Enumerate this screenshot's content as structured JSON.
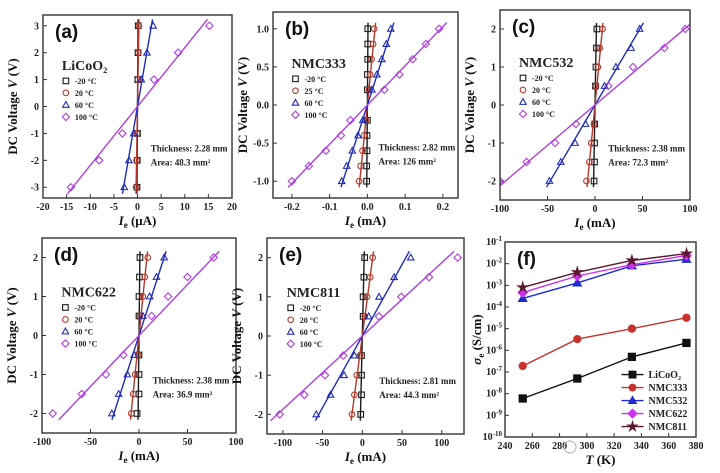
{
  "chart_data": [
    {
      "type": "scatter",
      "label": "(a)",
      "legend_title": "LiCoO₂",
      "thickness": "Thickness: 2.28 mm",
      "area": "Area: 48.3 mm²",
      "xlabel": {
        "var": "I",
        "sub": "e",
        "unit": " (μA)"
      },
      "ylabel": {
        "pre": "DC Voltage ",
        "var": "V",
        "unit": " (V)"
      },
      "xlim": [
        -20,
        20
      ],
      "ylim": [
        -3.4,
        3.4
      ],
      "xticks": [
        "-20",
        "-15",
        "-10",
        "-5",
        "0",
        "5",
        "10",
        "15",
        "20"
      ],
      "yticks": [
        "-3",
        "-2",
        "-1",
        "0",
        "1",
        "2",
        "3"
      ],
      "fit_lines": true,
      "series": [
        {
          "name": "-20 °C",
          "marker": "square",
          "color": "#1a1a1a",
          "points": [
            [
              -0.1,
              -3
            ],
            [
              -0.05,
              -2
            ],
            [
              0,
              -1
            ],
            [
              0.05,
              1
            ],
            [
              0.1,
              2
            ],
            [
              0.15,
              3
            ]
          ]
        },
        {
          "name": "20 °C",
          "marker": "circle",
          "color": "#b5382a",
          "points": [
            [
              -0.3,
              -3
            ],
            [
              -0.2,
              -2
            ],
            [
              -0.1,
              -1
            ],
            [
              0.1,
              1
            ],
            [
              0.2,
              2
            ],
            [
              0.3,
              3
            ]
          ]
        },
        {
          "name": "60 °C",
          "marker": "triangle",
          "color": "#1f2bb8",
          "points": [
            [
              -2.8,
              -3
            ],
            [
              -1.8,
              -2
            ],
            [
              -0.8,
              -1
            ],
            [
              0.8,
              1
            ],
            [
              2,
              2
            ],
            [
              3.3,
              3
            ]
          ]
        },
        {
          "name": "100 °C",
          "marker": "diamond",
          "color": "#b03ee0",
          "points": [
            [
              -14.1,
              -3
            ],
            [
              -8.1,
              -2
            ],
            [
              -3.2,
              -1
            ],
            [
              3.5,
              1
            ],
            [
              8.6,
              2
            ],
            [
              15.2,
              3
            ]
          ]
        }
      ]
    },
    {
      "type": "scatter",
      "label": "(b)",
      "legend_title": "NMC333",
      "thickness": "Thickness: 2.82 mm",
      "area": "Area: 126 mm²",
      "xlabel": {
        "var": "I",
        "sub": "e",
        "unit": " (mA)"
      },
      "ylabel": {
        "pre": "DC Voltage ",
        "var": "V",
        "unit": " (V)"
      },
      "xlim": [
        -0.25,
        0.24
      ],
      "ylim": [
        -1.22,
        1.22
      ],
      "xticks": [
        "-0.2",
        "-0.1",
        "0.0",
        "0.1",
        "0.2"
      ],
      "yticks": [
        "-1.0",
        "-0.5",
        "0.0",
        "0.5",
        "1.0"
      ],
      "fit_lines": true,
      "series": [
        {
          "name": "-20 °C",
          "marker": "square",
          "color": "#1a1a1a",
          "points": [
            [
              -0.002,
              -1
            ],
            [
              -0.002,
              -0.8
            ],
            [
              -0.001,
              -0.6
            ],
            [
              -0.001,
              -0.4
            ],
            [
              0,
              -0.2
            ],
            [
              0,
              0.2
            ],
            [
              0,
              0.4
            ],
            [
              0.001,
              0.6
            ],
            [
              0.001,
              0.8
            ],
            [
              0.001,
              1
            ]
          ]
        },
        {
          "name": "25 °C",
          "marker": "circle",
          "color": "#b5382a",
          "points": [
            [
              -0.022,
              -1
            ],
            [
              -0.018,
              -0.8
            ],
            [
              -0.013,
              -0.6
            ],
            [
              -0.009,
              -0.4
            ],
            [
              -0.004,
              -0.2
            ],
            [
              0.004,
              0.2
            ],
            [
              0.007,
              0.4
            ],
            [
              0.011,
              0.6
            ],
            [
              0.015,
              0.8
            ],
            [
              0.018,
              1
            ]
          ]
        },
        {
          "name": "60 °C",
          "marker": "triangle",
          "color": "#1f2bb8",
          "points": [
            [
              -0.068,
              -1
            ],
            [
              -0.055,
              -0.8
            ],
            [
              -0.04,
              -0.6
            ],
            [
              -0.025,
              -0.4
            ],
            [
              -0.012,
              -0.2
            ],
            [
              0.012,
              0.2
            ],
            [
              0.025,
              0.4
            ],
            [
              0.038,
              0.6
            ],
            [
              0.05,
              0.8
            ],
            [
              0.062,
              1
            ]
          ]
        },
        {
          "name": "100 °C",
          "marker": "diamond",
          "color": "#b03ee0",
          "points": [
            [
              -0.2,
              -1
            ],
            [
              -0.155,
              -0.8
            ],
            [
              -0.11,
              -0.6
            ],
            [
              -0.07,
              -0.4
            ],
            [
              -0.045,
              -0.2
            ],
            [
              0.045,
              0.2
            ],
            [
              0.085,
              0.4
            ],
            [
              0.12,
              0.6
            ],
            [
              0.155,
              0.8
            ],
            [
              0.19,
              1
            ]
          ]
        }
      ]
    },
    {
      "type": "scatter",
      "label": "(c)",
      "legend_title": "NMC532",
      "thickness": "Thickness: 2.38 mm",
      "area": "Area: 72.3 mm²",
      "xlabel": {
        "var": "I",
        "sub": "e",
        "unit": " (mA)"
      },
      "ylabel": {
        "pre": "DC Voltage ",
        "var": "V",
        "unit": " (V)"
      },
      "xlim": [
        -100,
        100
      ],
      "ylim": [
        -2.5,
        2.5
      ],
      "xticks": [
        "-100",
        "-50",
        "0",
        "50",
        "100"
      ],
      "yticks": [
        "-2",
        "-1",
        "0",
        "1",
        "2"
      ],
      "fit_lines": true,
      "series": [
        {
          "name": "-20 °C",
          "marker": "square",
          "color": "#1a1a1a",
          "points": [
            [
              -1,
              -2
            ],
            [
              -0.5,
              -1.5
            ],
            [
              -0.5,
              -1
            ],
            [
              -0.3,
              -0.5
            ],
            [
              0.5,
              0.5
            ],
            [
              1,
              1
            ],
            [
              1.5,
              1.5
            ],
            [
              2,
              2
            ]
          ]
        },
        {
          "name": "20 °C",
          "marker": "circle",
          "color": "#b5382a",
          "points": [
            [
              -9,
              -2
            ],
            [
              -6,
              -1.5
            ],
            [
              -4,
              -1
            ],
            [
              -1,
              -0.5
            ],
            [
              1,
              0.5
            ],
            [
              3,
              1
            ],
            [
              5,
              1.5
            ],
            [
              8,
              2
            ]
          ]
        },
        {
          "name": "60 °C",
          "marker": "triangle",
          "color": "#1f2bb8",
          "points": [
            [
              -48,
              -2
            ],
            [
              -36,
              -1.5
            ],
            [
              -21,
              -1
            ],
            [
              -10,
              -0.5
            ],
            [
              10,
              0.5
            ],
            [
              22,
              1
            ],
            [
              38,
              1.5
            ],
            [
              47,
              2
            ]
          ]
        },
        {
          "name": "100 °C",
          "marker": "diamond",
          "color": "#b03ee0",
          "points": [
            [
              -100,
              -2
            ],
            [
              -72,
              -1.5
            ],
            [
              -42,
              -1
            ],
            [
              -20,
              -0.5
            ],
            [
              14,
              0.5
            ],
            [
              40,
              1
            ],
            [
              73,
              1.5
            ],
            [
              95,
              2
            ]
          ]
        }
      ]
    },
    {
      "type": "scatter",
      "label": "(d)",
      "legend_title": "NMC622",
      "thickness": "Thickness: 2.38 mm",
      "area": "Area: 36.9 mm²",
      "xlabel": {
        "var": "I",
        "sub": "e",
        "unit": " (mA)"
      },
      "ylabel": {
        "pre": "DC Voltage ",
        "var": "V",
        "unit": " (V)"
      },
      "xlim": [
        -100,
        100
      ],
      "ylim": [
        -2.5,
        2.5
      ],
      "xticks": [
        "-100",
        "-50",
        "0",
        "50",
        "100"
      ],
      "yticks": [
        "-2",
        "-1",
        "0",
        "1",
        "2"
      ],
      "fit_lines": true,
      "series": [
        {
          "name": "-20 °C",
          "marker": "square",
          "color": "#1a1a1a",
          "points": [
            [
              -2,
              -2
            ],
            [
              0,
              -1.5
            ],
            [
              0,
              -1
            ],
            [
              0,
              -0.5
            ],
            [
              0,
              0.5
            ],
            [
              0,
              1
            ],
            [
              0.5,
              1.5
            ],
            [
              1,
              2
            ]
          ]
        },
        {
          "name": "20 °C",
          "marker": "circle",
          "color": "#b5382a",
          "points": [
            [
              -8,
              -2
            ],
            [
              -6,
              -1.5
            ],
            [
              -4,
              -1
            ],
            [
              -1,
              -0.5
            ],
            [
              1,
              0.5
            ],
            [
              4,
              1
            ],
            [
              6,
              1.5
            ],
            [
              9,
              2
            ]
          ]
        },
        {
          "name": "60 °C",
          "marker": "triangle",
          "color": "#1f2bb8",
          "points": [
            [
              -28,
              -2
            ],
            [
              -21,
              -1.5
            ],
            [
              -12,
              -1
            ],
            [
              -5,
              -0.5
            ],
            [
              4,
              0.5
            ],
            [
              11,
              1
            ],
            [
              18,
              1.5
            ],
            [
              26,
              2
            ]
          ]
        },
        {
          "name": "100 °C",
          "marker": "diamond",
          "color": "#b03ee0",
          "points": [
            [
              -89,
              -2
            ],
            [
              -59,
              -1.5
            ],
            [
              -34,
              -1
            ],
            [
              -16,
              -0.5
            ],
            [
              13,
              0.5
            ],
            [
              30,
              1
            ],
            [
              50,
              1.5
            ],
            [
              77,
              2
            ]
          ]
        }
      ]
    },
    {
      "type": "scatter",
      "label": "(e)",
      "legend_title": "NMC811",
      "thickness": "Thickness: 2.81 mm",
      "area": "Area: 44.3 mm²",
      "xlabel": {
        "var": "I",
        "sub": "e",
        "unit": " (mA)"
      },
      "ylabel": {
        "pre": "DC Voltage ",
        "var": "V",
        "unit": " (V)"
      },
      "xlim": [
        -120,
        128
      ],
      "ylim": [
        -2.5,
        2.5
      ],
      "xticks": [
        "-100",
        "-50",
        "0",
        "50",
        "100"
      ],
      "yticks": [
        "-2",
        "-1",
        "0",
        "1",
        "2"
      ],
      "fit_lines": true,
      "series": [
        {
          "name": "-20 °C",
          "marker": "square",
          "color": "#1a1a1a",
          "points": [
            [
              -2,
              -2
            ],
            [
              -1,
              -1.5
            ],
            [
              -1,
              -1
            ],
            [
              -1,
              -0.5
            ],
            [
              1,
              0.5
            ],
            [
              1,
              1
            ],
            [
              2,
              1.5
            ],
            [
              3,
              2
            ]
          ]
        },
        {
          "name": "20 °C",
          "marker": "circle",
          "color": "#b5382a",
          "points": [
            [
              -13,
              -2
            ],
            [
              -10,
              -1.5
            ],
            [
              -7,
              -1
            ],
            [
              -3,
              -0.5
            ],
            [
              3,
              0.5
            ],
            [
              6,
              1
            ],
            [
              10,
              1.5
            ],
            [
              13,
              2
            ]
          ]
        },
        {
          "name": "60 °C",
          "marker": "triangle",
          "color": "#1f2bb8",
          "points": [
            [
              -58,
              -2
            ],
            [
              -40,
              -1.5
            ],
            [
              -23,
              -1
            ],
            [
              -10,
              -0.5
            ],
            [
              8,
              0.5
            ],
            [
              21,
              1
            ],
            [
              40,
              1.5
            ],
            [
              61,
              2
            ]
          ]
        },
        {
          "name": "100 °C",
          "marker": "diamond",
          "color": "#b03ee0",
          "points": [
            [
              -104,
              -2
            ],
            [
              -73,
              -1.5
            ],
            [
              -47,
              -1
            ],
            [
              -24,
              -0.5
            ],
            [
              21,
              0.5
            ],
            [
              49,
              1
            ],
            [
              84,
              1.5
            ],
            [
              120,
              2
            ]
          ]
        }
      ]
    },
    {
      "type": "line",
      "label": "(f)",
      "yscale": "log",
      "xlabel": {
        "var": "T",
        "sub": "",
        "unit": " (K)"
      },
      "ylabel": {
        "pre": "",
        "var": "σ",
        "sub": "e",
        "unit": " (S/cm)"
      },
      "xlim": [
        240,
        380
      ],
      "ylim": [
        1e-10,
        0.1
      ],
      "xticks": [
        "240",
        "260",
        "280",
        "300",
        "320",
        "340",
        "360",
        "380"
      ],
      "yticks_exp": [
        -10,
        -9,
        -8,
        -7,
        -6,
        -5,
        -4,
        -3,
        -2,
        -1
      ],
      "legend_position": "bottom-right",
      "series": [
        {
          "name": "LiCoO₂",
          "marker": "square",
          "color": "#111111",
          "points": [
            [
              253,
              6e-09
            ],
            [
              293,
              5e-08
            ],
            [
              333,
              5e-07
            ],
            [
              373,
              2.2e-06
            ]
          ]
        },
        {
          "name": "NMC333",
          "marker": "circle",
          "color": "#c8322a",
          "points": [
            [
              253,
              1.9e-07
            ],
            [
              293,
              3.3e-06
            ],
            [
              333,
              1e-05
            ],
            [
              373,
              3.2e-05
            ]
          ]
        },
        {
          "name": "NMC532",
          "marker": "triangle",
          "color": "#1f2bd0",
          "points": [
            [
              253,
              0.00025
            ],
            [
              293,
              0.0013
            ],
            [
              333,
              0.008
            ],
            [
              373,
              0.016
            ]
          ]
        },
        {
          "name": "NMC622",
          "marker": "diamond",
          "color": "#cc33ee",
          "points": [
            [
              253,
              0.00046
            ],
            [
              293,
              0.0027
            ],
            [
              333,
              0.009
            ],
            [
              373,
              0.024
            ]
          ]
        },
        {
          "name": "NMC811",
          "marker": "star",
          "color": "#5a1830",
          "points": [
            [
              253,
              0.0008
            ],
            [
              293,
              0.004
            ],
            [
              333,
              0.014
            ],
            [
              373,
              0.029
            ]
          ]
        }
      ]
    }
  ],
  "watermark": "新能源Leader"
}
